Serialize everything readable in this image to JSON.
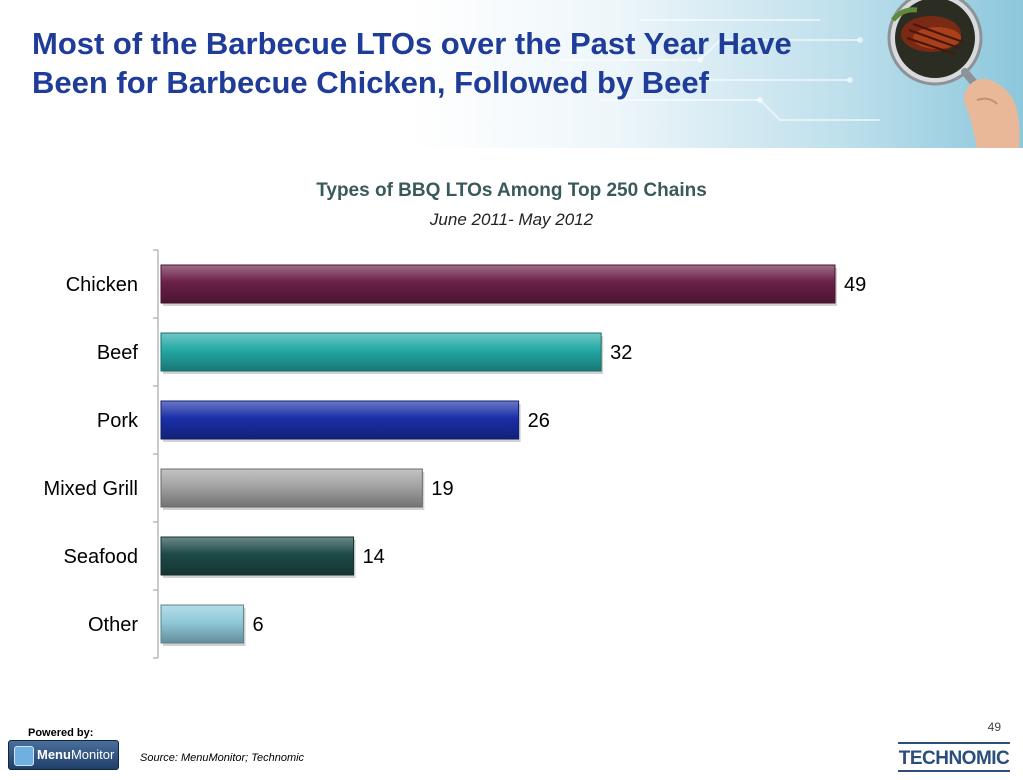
{
  "page": {
    "title": "Most of the Barbecue LTOs over the Past Year Have Been for Barbecue Chicken, Followed by Beef",
    "powered_by": "Powered by:",
    "menumonitor_bold": "Menu",
    "menumonitor_regular": "Monitor",
    "source": "Source: MenuMonitor; Technomic",
    "page_number": "49",
    "technomic": "TECHNOMIC"
  },
  "chart_data": {
    "type": "bar",
    "orientation": "horizontal",
    "title": "Types of BBQ LTOs Among Top 250 Chains",
    "subtitle": "June 2011- May 2012",
    "categories": [
      "Chicken",
      "Beef",
      "Pork",
      "Mixed Grill",
      "Seafood",
      "Other"
    ],
    "values": [
      49,
      32,
      26,
      19,
      14,
      6
    ],
    "data_labels": [
      "49",
      "32",
      "26",
      "19",
      "14",
      "6"
    ],
    "colors": [
      "#6b1f47",
      "#23a9a4",
      "#1a2fa8",
      "#a3a3a3",
      "#1e4a48",
      "#8fc9da"
    ],
    "xlim": [
      0,
      49
    ],
    "grid": false,
    "legend": "none"
  }
}
